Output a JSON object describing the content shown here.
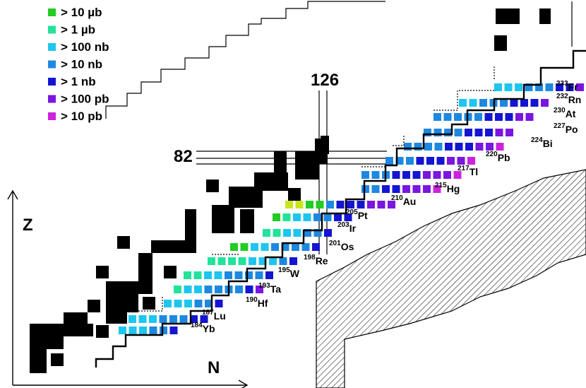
{
  "legend": [
    {
      "label": "> 10 µb",
      "color": "#22cc22"
    },
    {
      "label": ">  1 µb",
      "color": "#22e39a"
    },
    {
      "label": ">  100 nb",
      "color": "#1ec6ef"
    },
    {
      "label": "> 10 nb",
      "color": "#1e88e0"
    },
    {
      "label": "> 1 nb",
      "color": "#1414d2"
    },
    {
      "label": "> 100 pb",
      "color": "#7a16e0"
    },
    {
      "label": "> 10 pb",
      "color": "#cc22dd"
    }
  ],
  "magic_numbers": {
    "n": "126",
    "z": "82"
  },
  "axes": {
    "z_label": "Z",
    "n_label": "N"
  },
  "isotopes": [
    {
      "mass": "184",
      "symbol": "Yb"
    },
    {
      "mass": "187",
      "symbol": "Lu"
    },
    {
      "mass": "190",
      "symbol": "Hf"
    },
    {
      "mass": "193",
      "symbol": "Ta"
    },
    {
      "mass": "195",
      "symbol": "W"
    },
    {
      "mass": "198",
      "symbol": "Re"
    },
    {
      "mass": "201",
      "symbol": "Os"
    },
    {
      "mass": "203",
      "symbol": "Ir"
    },
    {
      "mass": "205",
      "symbol": "Pt"
    },
    {
      "mass": "210",
      "symbol": "Au"
    },
    {
      "mass": "215",
      "symbol": "Hg"
    },
    {
      "mass": "217",
      "symbol": "Tl"
    },
    {
      "mass": "220",
      "symbol": "Pb"
    },
    {
      "mass": "224",
      "symbol": "Bi"
    },
    {
      "mass": "227",
      "symbol": "Po"
    },
    {
      "mass": "230",
      "symbol": "At"
    },
    {
      "mass": "232",
      "symbol": "Rn"
    },
    {
      "mass": "233",
      "symbol": "Fr"
    }
  ],
  "colors": {
    "stable": "#000000",
    "highlight": "#c8e61e",
    "hatch": "#000000"
  }
}
